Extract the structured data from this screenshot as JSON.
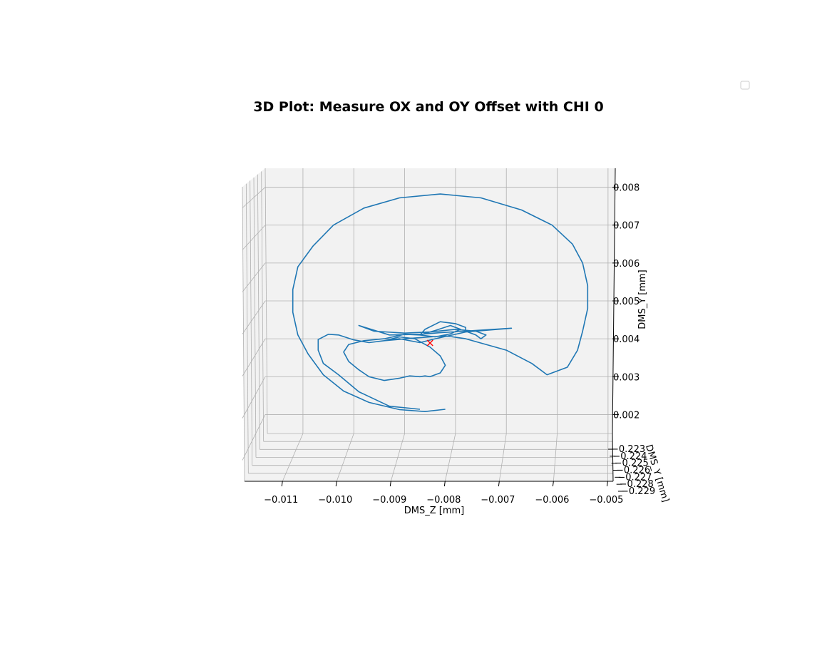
{
  "chart_data": {
    "type": "line",
    "projection": "3d",
    "title": "3D Plot: Measure OX and OY Offset with CHI 0",
    "xlabel": "DMS_Z [mm]",
    "ylabel": "DMS_Y [mm]",
    "zlabel": "DMS_Y [mm]",
    "x_ticks": [
      "−0.011",
      "−0.010",
      "−0.009",
      "−0.008",
      "−0.007",
      "−0.006",
      "−0.005"
    ],
    "y_ticks": [
      "−0.223",
      "−0.224",
      "−0.225",
      "−0.226",
      "−0.227",
      "−0.228",
      "−0.229"
    ],
    "z_ticks": [
      "0.002",
      "0.003",
      "0.004",
      "0.005",
      "0.006",
      "0.007",
      "0.008"
    ],
    "xlim": [
      -0.0117,
      -0.0049
    ],
    "zlim": [
      0.0015,
      0.0085
    ],
    "grid": true,
    "legend": {
      "placement": "top-right",
      "entries": []
    },
    "series": [
      {
        "color": "#1f77b4",
        "points": [
          [
            -0.0087,
            0.00214
          ],
          [
            -0.0093,
            0.00222
          ],
          [
            -0.0099,
            0.0026
          ],
          [
            -0.0103,
            0.00305
          ],
          [
            -0.0106,
            0.00335
          ],
          [
            -0.0107,
            0.0037
          ],
          [
            -0.0107,
            0.00398
          ],
          [
            -0.0105,
            0.00412
          ],
          [
            -0.0103,
            0.0041
          ],
          [
            -0.01,
            0.00397
          ],
          [
            -0.0097,
            0.0039
          ],
          [
            -0.0094,
            0.00395
          ],
          [
            -0.0091,
            0.00405
          ],
          [
            -0.0088,
            0.004
          ],
          [
            -0.0085,
            0.00378
          ],
          [
            -0.0083,
            0.00355
          ],
          [
            -0.0082,
            0.0033
          ],
          [
            -0.0083,
            0.0031
          ],
          [
            -0.0085,
            0.003
          ],
          [
            -0.0086,
            0.00302
          ],
          [
            -0.0087,
            0.003
          ],
          [
            -0.0089,
            0.00302
          ],
          [
            -0.0091,
            0.00296
          ],
          [
            -0.0094,
            0.0029
          ],
          [
            -0.0097,
            0.003
          ],
          [
            -0.0099,
            0.00318
          ],
          [
            -0.0101,
            0.0034
          ],
          [
            -0.0102,
            0.00365
          ],
          [
            -0.0101,
            0.00385
          ],
          [
            -0.0098,
            0.00395
          ],
          [
            -0.0094,
            0.004
          ],
          [
            -0.009,
            0.00412
          ],
          [
            -0.0087,
            0.0041
          ],
          [
            -0.0084,
            0.00422
          ],
          [
            -0.0081,
            0.00435
          ],
          [
            -0.0079,
            0.00425
          ],
          [
            -0.0081,
            0.00413
          ],
          [
            -0.0084,
            0.00405
          ],
          [
            -0.0087,
            0.0041
          ],
          [
            -0.0086,
            0.00425
          ],
          [
            -0.0083,
            0.00445
          ],
          [
            -0.008,
            0.0044
          ],
          [
            -0.0078,
            0.0043
          ],
          [
            -0.0078,
            0.0042
          ],
          [
            -0.0076,
            0.0041
          ],
          [
            -0.0075,
            0.004
          ],
          [
            -0.0074,
            0.0041
          ],
          [
            -0.0076,
            0.0042
          ],
          [
            -0.008,
            0.00425
          ],
          [
            -0.0085,
            0.00418
          ],
          [
            -0.009,
            0.00415
          ],
          [
            -0.0096,
            0.0042
          ],
          [
            -0.0099,
            0.00435
          ],
          [
            -0.0093,
            0.0041
          ],
          [
            -0.0087,
            0.00412
          ],
          [
            -0.0083,
            0.00416
          ],
          [
            -0.0069,
            0.00428
          ],
          [
            -0.0078,
            0.00418
          ],
          [
            -0.0084,
            0.004
          ],
          [
            -0.0087,
            0.0039
          ],
          [
            -0.0091,
            0.004
          ],
          [
            -0.0094,
            0.00395
          ],
          [
            -0.0088,
            0.00402
          ],
          [
            -0.0082,
            0.00408
          ],
          [
            -0.0078,
            0.004
          ],
          [
            -0.007,
            0.0037
          ],
          [
            -0.0065,
            0.00335
          ],
          [
            -0.0062,
            0.00305
          ],
          [
            -0.0058,
            0.00325
          ],
          [
            -0.0056,
            0.0037
          ],
          [
            -0.0055,
            0.0042
          ],
          [
            -0.0054,
            0.0048
          ],
          [
            -0.0054,
            0.0054
          ],
          [
            -0.0055,
            0.006
          ],
          [
            -0.0057,
            0.0065
          ],
          [
            -0.0061,
            0.007
          ],
          [
            -0.0067,
            0.0074
          ],
          [
            -0.0075,
            0.00772
          ],
          [
            -0.0083,
            0.00782
          ],
          [
            -0.0091,
            0.00772
          ],
          [
            -0.0098,
            0.00745
          ],
          [
            -0.0104,
            0.007
          ],
          [
            -0.0108,
            0.00645
          ],
          [
            -0.0111,
            0.0059
          ],
          [
            -0.0112,
            0.0053
          ],
          [
            -0.0112,
            0.0047
          ],
          [
            -0.0111,
            0.0041
          ],
          [
            -0.0109,
            0.0036
          ],
          [
            -0.0106,
            0.00305
          ],
          [
            -0.0102,
            0.00262
          ],
          [
            -0.0097,
            0.00232
          ],
          [
            -0.0091,
            0.00213
          ],
          [
            -0.0086,
            0.00208
          ],
          [
            -0.0082,
            0.00214
          ]
        ]
      }
    ],
    "marker": {
      "symbol": "x",
      "color": "#ff0000",
      "x": -0.0085,
      "z": 0.00389
    }
  }
}
